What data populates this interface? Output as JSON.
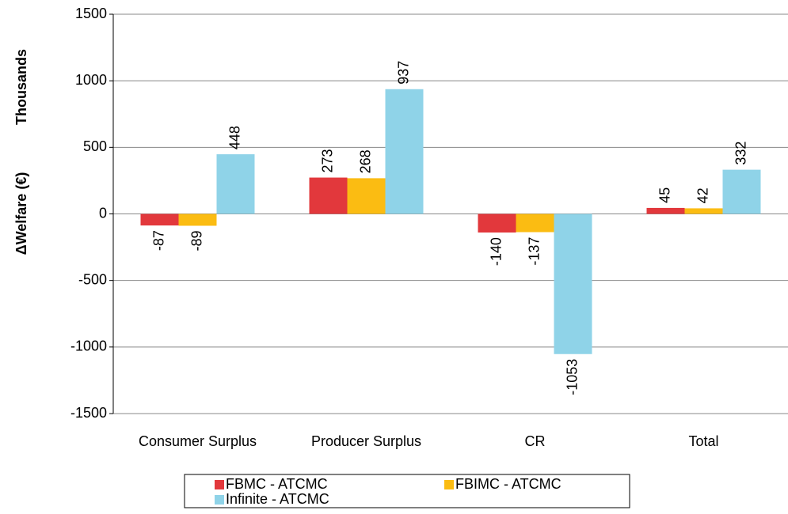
{
  "chart_data": {
    "type": "bar",
    "y_label": "ΔWelfare (€)",
    "y_unit": "Thousands",
    "categories": [
      "Consumer Surplus",
      "Producer Surplus",
      "CR",
      "Total"
    ],
    "series": [
      {
        "name": "FBMC - ATCMC",
        "color": "#e2383c",
        "values": [
          -87,
          273,
          -140,
          45
        ]
      },
      {
        "name": "FBIMC - ATCMC",
        "color": "#fbbc12",
        "values": [
          -89,
          268,
          -137,
          42
        ]
      },
      {
        "name": "Infinite - ATCMC",
        "color": "#8fd3e8",
        "values": [
          448,
          937,
          -1053,
          332
        ]
      }
    ],
    "ylim": [
      -1500,
      1500
    ],
    "yticks": [
      -1500,
      -1000,
      -500,
      0,
      500,
      1000,
      1500
    ],
    "grid": true
  }
}
